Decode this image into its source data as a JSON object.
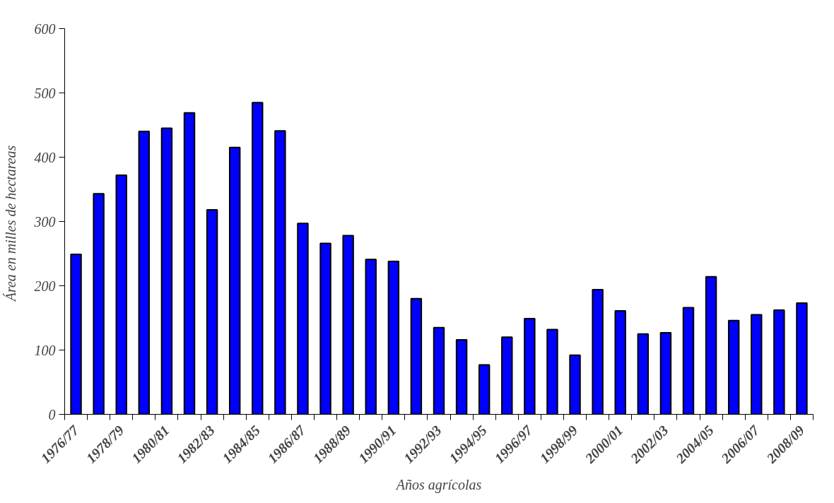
{
  "chart_data": {
    "type": "bar",
    "xlabel": "Años agrícolas",
    "ylabel": "Área en  milles de hectareas",
    "categories": [
      "1976/77",
      null,
      "1978/79",
      null,
      "1980/81",
      null,
      "1982/83",
      null,
      "1984/85",
      null,
      "1986/87",
      null,
      "1988/89",
      null,
      "1990/91",
      null,
      "1992/93",
      null,
      "1994/95",
      null,
      "1996/97",
      null,
      "1998/99",
      null,
      "2000/01",
      null,
      "2002/03",
      null,
      "2004/05",
      null,
      "2006/07",
      null,
      "2008/09"
    ],
    "values": [
      249,
      343,
      372,
      440,
      445,
      469,
      318,
      415,
      485,
      441,
      297,
      266,
      278,
      241,
      238,
      180,
      135,
      116,
      77,
      120,
      149,
      132,
      92,
      194,
      161,
      125,
      127,
      166,
      214,
      146,
      155,
      162,
      173
    ],
    "color": "#0000ff",
    "ylim": [
      0,
      600
    ],
    "yticks": [
      0,
      100,
      200,
      300,
      400,
      500,
      600
    ],
    "grid": false
  }
}
